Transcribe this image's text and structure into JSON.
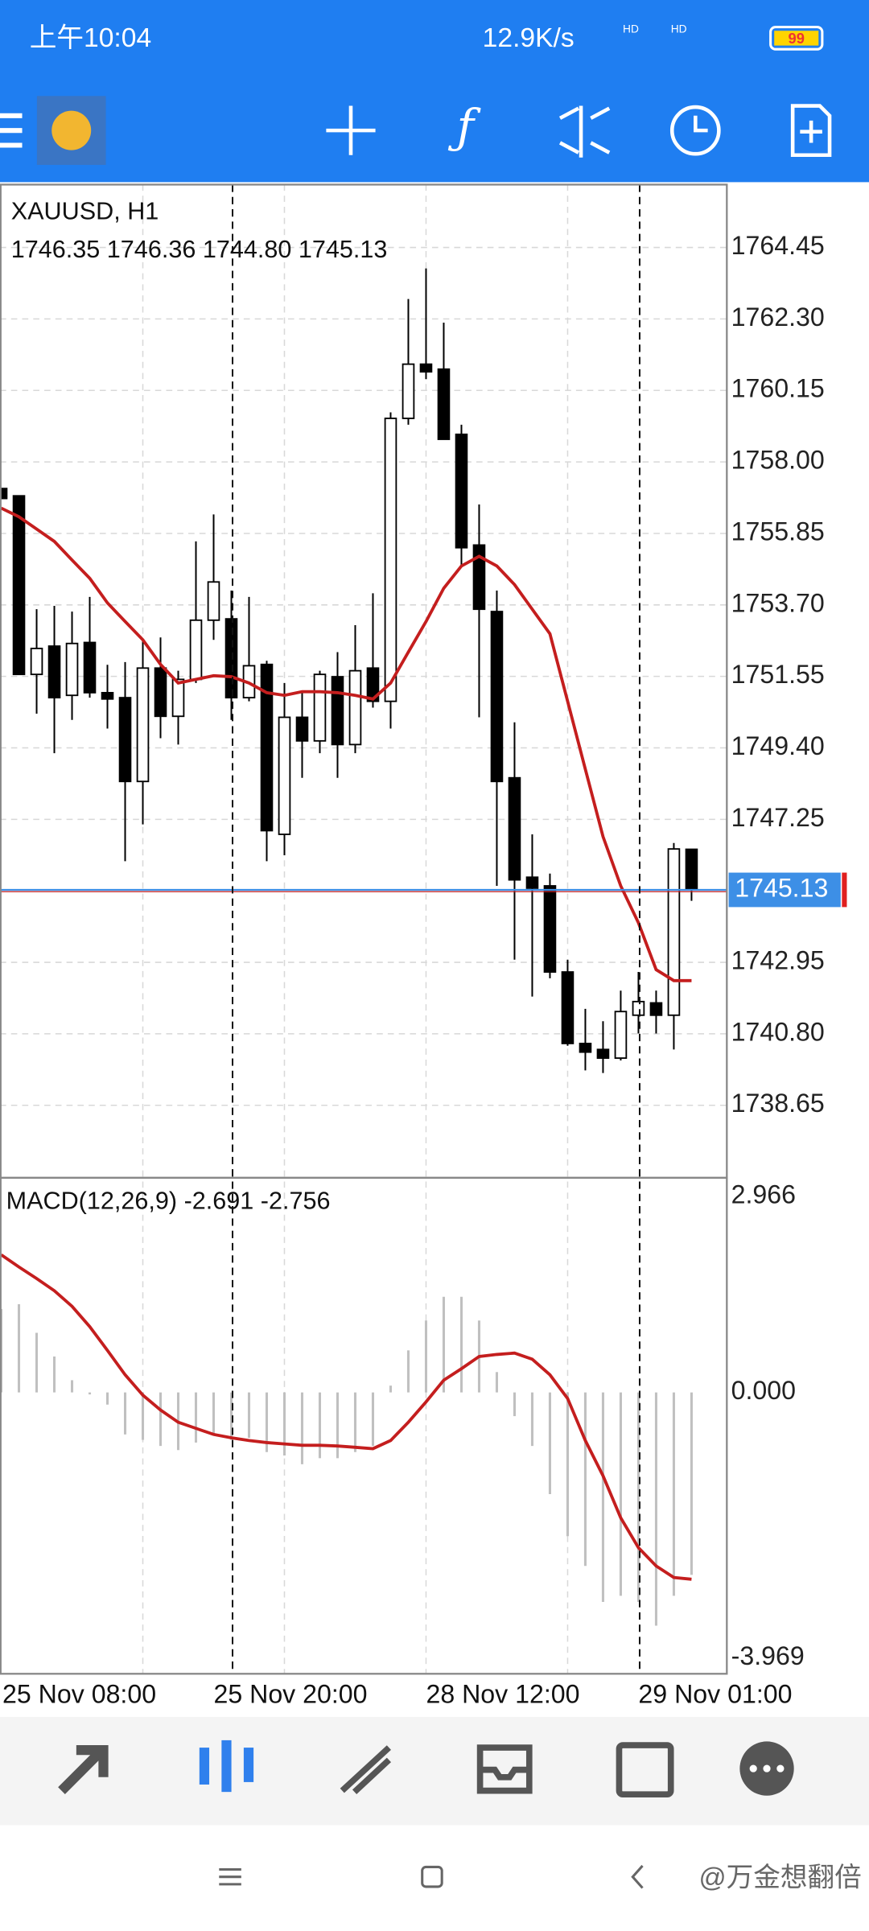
{
  "status_bar": {
    "time": "上午10:04",
    "speed": "12.9K/s",
    "network": "HD",
    "battery": "99"
  },
  "chart_data": [
    {
      "type": "candlestick",
      "title": "XAUUSD, H1",
      "subtitle": "1746.35 1746.36 1744.80 1745.13",
      "categories": [
        "25 Nov 08:00",
        null,
        null,
        null,
        null,
        null,
        null,
        null,
        null,
        null,
        null,
        null,
        "25 Nov 20:00",
        null,
        null,
        null,
        null,
        null,
        null,
        null,
        null,
        null,
        null,
        null,
        "28 Nov 12:00",
        null,
        null,
        null,
        null,
        null,
        null,
        null,
        null,
        null,
        null,
        null,
        "29 Nov 01:00",
        null,
        null,
        null
      ],
      "open": [
        1757.2,
        1756.98,
        1751.61,
        1752.46,
        1750.98,
        1752.57,
        1751.06,
        1750.91,
        1748.39,
        1751.8,
        1750.35,
        1751.46,
        1753.24,
        1753.28,
        1750.91,
        1751.91,
        1746.8,
        1750.32,
        1749.61,
        1751.54,
        1749.5,
        1751.8,
        1750.8,
        1759.31,
        1760.94,
        1760.79,
        1758.83,
        1755.5,
        1753.5,
        1748.5,
        1745.51,
        1745.25,
        1742.66,
        1740.51,
        1740.33,
        1740.07,
        1741.36,
        1741.73,
        1741.36,
        1746.35
      ],
      "high": [
        1757.2,
        1756.98,
        1753.57,
        1753.67,
        1753.5,
        1753.94,
        1751.9,
        1751.98,
        1752.65,
        1752.72,
        1751.72,
        1755.61,
        1756.42,
        1754.13,
        1753.94,
        1752.02,
        1751.35,
        1751.06,
        1751.72,
        1752.28,
        1753.09,
        1754.05,
        1759.49,
        1762.9,
        1763.82,
        1762.19,
        1759.12,
        1756.72,
        1754.13,
        1750.17,
        1746.8,
        1745.62,
        1743.03,
        1741.55,
        1741.18,
        1742.1,
        1742.66,
        1742.1,
        1746.54,
        1746.36
      ],
      "low": [
        1756.9,
        1751.61,
        1750.43,
        1749.24,
        1750.24,
        1750.91,
        1749.98,
        1745.99,
        1747.1,
        1749.69,
        1749.5,
        1751.35,
        1752.65,
        1750.24,
        1750.8,
        1745.99,
        1746.17,
        1748.5,
        1749.24,
        1748.5,
        1749.24,
        1750.61,
        1749.98,
        1759.12,
        1760.49,
        1758.68,
        1754.87,
        1750.32,
        1745.25,
        1743.03,
        1741.92,
        1742.47,
        1740.44,
        1739.7,
        1739.62,
        1740.0,
        1740.81,
        1740.81,
        1740.33,
        1744.8
      ],
      "close": [
        1756.9,
        1751.61,
        1752.39,
        1750.91,
        1752.54,
        1751.06,
        1750.87,
        1748.39,
        1751.8,
        1750.35,
        1751.46,
        1753.24,
        1754.39,
        1750.91,
        1751.87,
        1746.91,
        1750.32,
        1749.61,
        1751.61,
        1749.5,
        1751.72,
        1750.8,
        1759.31,
        1760.94,
        1760.71,
        1758.68,
        1755.42,
        1753.57,
        1748.39,
        1745.43,
        1745.18,
        1742.66,
        1740.51,
        1740.25,
        1740.07,
        1741.47,
        1741.77,
        1741.36,
        1746.36,
        1745.13
      ],
      "overlay": {
        "color": "#c41e1e",
        "values": [
          1756.61,
          1756.35,
          1755.98,
          1755.61,
          1755.05,
          1754.5,
          1753.76,
          1753.2,
          1752.65,
          1751.91,
          1751.35,
          1751.46,
          1751.57,
          1751.54,
          1751.35,
          1751.06,
          1750.98,
          1751.09,
          1751.09,
          1751.06,
          1750.98,
          1750.87,
          1751.35,
          1752.28,
          1753.2,
          1754.2,
          1754.87,
          1755.16,
          1754.87,
          1754.31,
          1753.57,
          1752.83,
          1750.8,
          1748.76,
          1746.73,
          1745.25,
          1744.14,
          1742.73,
          1742.4,
          1742.4
        ]
      },
      "last_price": 1745.13,
      "last_price_color": "#3d8fe6",
      "ylim": [
        1736.47,
        1766.34
      ],
      "yticks": [
        1764.45,
        {
          "value": 1762.3,
          "label": "1762.30"
        },
        1760.15,
        {
          "value": 1758,
          "label": "1758.00"
        },
        1755.85,
        {
          "value": 1753.7,
          "label": "1753.70"
        },
        1751.55,
        {
          "value": 1749.4,
          "label": "1749.40"
        },
        1747.25,
        1742.95,
        {
          "value": 1740.8,
          "label": "1740.80"
        },
        1738.65
      ],
      "grid": true
    },
    {
      "type": "macd",
      "title": "MACD(12,26,9) -2.691 -2.756",
      "histogram": {
        "color": "#c0c0c0",
        "values": [
          1.23,
          1.3,
          0.88,
          0.53,
          0.18,
          -0.03,
          -0.18,
          -0.62,
          -0.7,
          -0.79,
          -0.85,
          -0.74,
          -0.62,
          -0.7,
          -0.67,
          -0.88,
          -0.93,
          -1.06,
          -0.97,
          -0.97,
          -0.88,
          -0.79,
          0.1,
          0.62,
          1.06,
          1.41,
          1.41,
          1.06,
          0.3,
          -0.35,
          -0.79,
          -1.5,
          -2.12,
          -2.56,
          -3.09,
          -3.0,
          -3.09,
          -3.44,
          -3.0,
          -2.691
        ]
      },
      "signal": {
        "color": "#c41e1e",
        "values": [
          2.03,
          1.85,
          1.68,
          1.5,
          1.27,
          0.97,
          0.62,
          0.26,
          -0.04,
          -0.26,
          -0.44,
          -0.53,
          -0.62,
          -0.67,
          -0.71,
          -0.74,
          -0.76,
          -0.78,
          -0.78,
          -0.79,
          -0.81,
          -0.83,
          -0.71,
          -0.44,
          -0.14,
          0.18,
          0.35,
          0.53,
          0.56,
          0.58,
          0.49,
          0.26,
          -0.09,
          -0.71,
          -1.23,
          -1.85,
          -2.29,
          -2.56,
          -2.73,
          -2.756
        ]
      },
      "ylim": [
        -3.969,
        2.966
      ],
      "yticks": [
        2.966,
        {
          "value": 0,
          "label": "0.000"
        },
        -3.969
      ]
    }
  ],
  "watermark": "@万金想翻倍"
}
